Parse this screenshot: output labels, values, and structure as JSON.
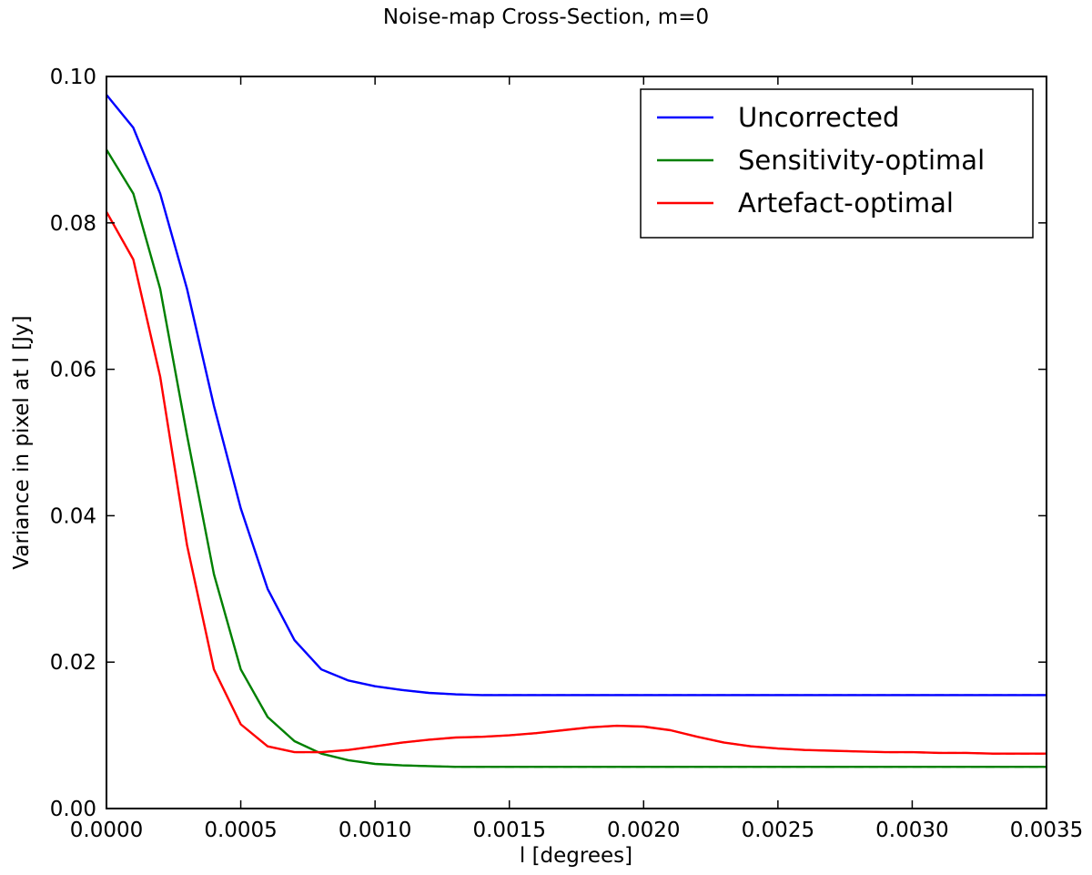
{
  "chart_data": {
    "type": "line",
    "title": "Noise-map  Cross-Section, m=0",
    "xlabel": "l [degrees]",
    "ylabel": "Variance in pixel at l [Jy]",
    "xlim": [
      0.0,
      0.0035
    ],
    "ylim": [
      0.0,
      0.1
    ],
    "xticks": [
      "0.0000",
      "0.0005",
      "0.0010",
      "0.0015",
      "0.0020",
      "0.0025",
      "0.0030",
      "0.0035"
    ],
    "yticks": [
      "0.00",
      "0.02",
      "0.04",
      "0.06",
      "0.08",
      "0.10"
    ],
    "grid": false,
    "legend_position": "top-right",
    "x": [
      0.0,
      0.0001,
      0.0002,
      0.0003,
      0.0004,
      0.0005,
      0.0006,
      0.0007,
      0.0008,
      0.0009,
      0.001,
      0.0011,
      0.0012,
      0.0013,
      0.0014,
      0.0015,
      0.0016,
      0.0017,
      0.0018,
      0.0019,
      0.002,
      0.0021,
      0.0022,
      0.0023,
      0.0024,
      0.0025,
      0.0026,
      0.0027,
      0.0028,
      0.0029,
      0.003,
      0.0031,
      0.0032,
      0.0033,
      0.0034,
      0.0035
    ],
    "series": [
      {
        "name": "Uncorrected",
        "color": "#0000ff",
        "values": [
          0.0975,
          0.093,
          0.084,
          0.071,
          0.055,
          0.041,
          0.03,
          0.023,
          0.019,
          0.0175,
          0.0167,
          0.0162,
          0.0158,
          0.0156,
          0.0155,
          0.0155,
          0.0155,
          0.0155,
          0.0155,
          0.0155,
          0.0155,
          0.0155,
          0.0155,
          0.0155,
          0.0155,
          0.0155,
          0.0155,
          0.0155,
          0.0155,
          0.0155,
          0.0155,
          0.0155,
          0.0155,
          0.0155,
          0.0155,
          0.0155
        ]
      },
      {
        "name": "Sensitivity-optimal",
        "color": "#008000",
        "values": [
          0.09,
          0.084,
          0.071,
          0.051,
          0.032,
          0.019,
          0.0125,
          0.0092,
          0.0075,
          0.0066,
          0.0061,
          0.0059,
          0.0058,
          0.0057,
          0.0057,
          0.0057,
          0.0057,
          0.0057,
          0.0057,
          0.0057,
          0.0057,
          0.0057,
          0.0057,
          0.0057,
          0.0057,
          0.0057,
          0.0057,
          0.0057,
          0.0057,
          0.0057,
          0.0057,
          0.0057,
          0.0057,
          0.0057,
          0.0057,
          0.0057
        ]
      },
      {
        "name": "Artefact-optimal",
        "color": "#ff0000",
        "values": [
          0.0815,
          0.075,
          0.059,
          0.036,
          0.019,
          0.0115,
          0.0085,
          0.0077,
          0.0077,
          0.008,
          0.0085,
          0.009,
          0.0094,
          0.0097,
          0.0098,
          0.01,
          0.0103,
          0.0107,
          0.0111,
          0.0113,
          0.0112,
          0.0107,
          0.0098,
          0.009,
          0.0085,
          0.0082,
          0.008,
          0.0079,
          0.0078,
          0.0077,
          0.0077,
          0.0076,
          0.0076,
          0.0075,
          0.0075,
          0.0075
        ]
      }
    ]
  }
}
